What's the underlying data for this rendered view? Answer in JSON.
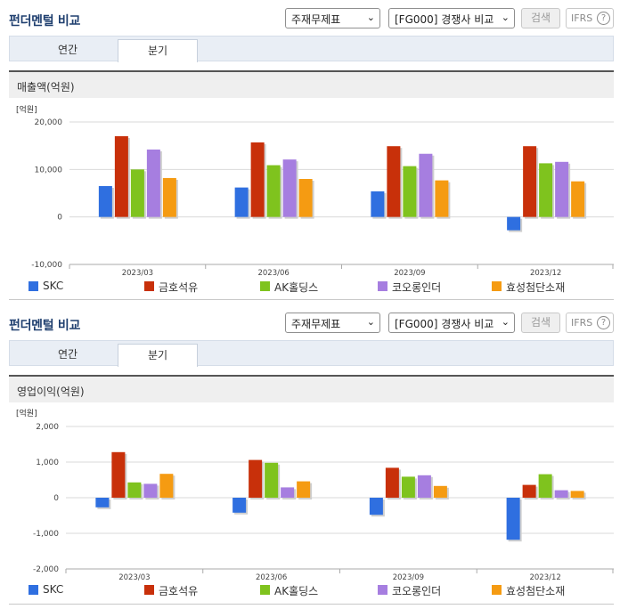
{
  "panels": [
    {
      "title": "펀더멘털 비교",
      "statement_select": "주재무제표",
      "compare_select": "[FG000] 경쟁사 비교",
      "search_label": "검색",
      "ifrs_label": "IFRS",
      "tabs": [
        "연간",
        "분기"
      ],
      "active_tab": "분기",
      "chart_title": "매출액(억원)"
    },
    {
      "title": "펀더멘털 비교",
      "statement_select": "주재무제표",
      "compare_select": "[FG000] 경쟁사 비교",
      "search_label": "검색",
      "ifrs_label": "IFRS",
      "tabs": [
        "연간",
        "분기"
      ],
      "active_tab": "분기",
      "chart_title": "영업이익(억원)"
    }
  ],
  "colors": {
    "SKC": "#2f6fe0",
    "금호석유": "#c8300a",
    "AK홀딩스": "#7fc31e",
    "코오롱인더": "#a67ee0",
    "효성첨단소재": "#f59b12"
  },
  "chart_data": [
    {
      "type": "bar",
      "title": "매출액(억원)",
      "unit_label": "[억원]",
      "categories": [
        "2023/03",
        "2023/06",
        "2023/09",
        "2023/12"
      ],
      "ylim": [
        -10000,
        20000
      ],
      "yticks": [
        20000,
        10000,
        0,
        -10000
      ],
      "ytick_labels": [
        "20,000",
        "10,000",
        "0",
        "-10,000"
      ],
      "series": [
        {
          "name": "SKC",
          "values": [
            6500,
            6200,
            5400,
            -2800
          ]
        },
        {
          "name": "금호석유",
          "values": [
            17000,
            15700,
            14900,
            14900
          ]
        },
        {
          "name": "AK홀딩스",
          "values": [
            10000,
            10900,
            10700,
            11300
          ]
        },
        {
          "name": "코오롱인더",
          "values": [
            14200,
            12100,
            13300,
            11600
          ]
        },
        {
          "name": "효성첨단소재",
          "values": [
            8200,
            8000,
            7700,
            7500
          ]
        }
      ],
      "legend": "bottom"
    },
    {
      "type": "bar",
      "title": "영업이익(억원)",
      "unit_label": "[억원]",
      "categories": [
        "2023/03",
        "2023/06",
        "2023/09",
        "2023/12"
      ],
      "ylim": [
        -2000,
        2000
      ],
      "yticks": [
        2000,
        1000,
        0,
        -1000,
        -2000
      ],
      "ytick_labels": [
        "2,000",
        "1,000",
        "0",
        "-1,000",
        "-2,000"
      ],
      "series": [
        {
          "name": "SKC",
          "values": [
            -270,
            -420,
            -480,
            -1180
          ]
        },
        {
          "name": "금호석유",
          "values": [
            1280,
            1060,
            840,
            360
          ]
        },
        {
          "name": "AK홀딩스",
          "values": [
            430,
            980,
            590,
            660
          ]
        },
        {
          "name": "코오롱인더",
          "values": [
            390,
            290,
            630,
            210
          ]
        },
        {
          "name": "효성첨단소재",
          "values": [
            670,
            460,
            330,
            190
          ]
        }
      ],
      "legend": "bottom"
    }
  ]
}
